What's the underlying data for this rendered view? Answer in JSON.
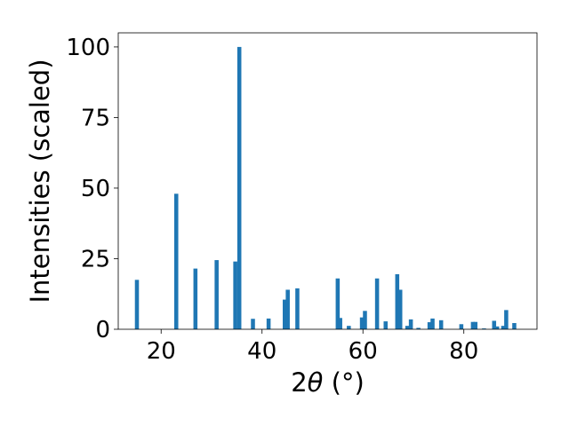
{
  "chart_data": {
    "type": "bar",
    "xlabel": "2θ (°)",
    "xlabel_parts": {
      "prefix": "2",
      "symbol": "θ",
      "suffix": " (°)"
    },
    "ylabel": "Intensities (scaled)",
    "xlim": [
      11.5,
      94.5
    ],
    "ylim": [
      0,
      105
    ],
    "x_ticks": [
      20,
      40,
      60,
      80
    ],
    "y_ticks": [
      0,
      25,
      50,
      75,
      100
    ],
    "color": "#1f77b4",
    "bar_width": 0.8,
    "points": [
      {
        "x": 15.2,
        "y": 17.5
      },
      {
        "x": 23.0,
        "y": 48.0
      },
      {
        "x": 26.8,
        "y": 21.5
      },
      {
        "x": 31.0,
        "y": 24.5
      },
      {
        "x": 34.7,
        "y": 24.0
      },
      {
        "x": 35.5,
        "y": 100.0
      },
      {
        "x": 38.2,
        "y": 3.7
      },
      {
        "x": 41.3,
        "y": 3.8
      },
      {
        "x": 44.5,
        "y": 10.5
      },
      {
        "x": 45.1,
        "y": 14.0
      },
      {
        "x": 47.0,
        "y": 14.5
      },
      {
        "x": 55.0,
        "y": 18.0
      },
      {
        "x": 55.5,
        "y": 4.0
      },
      {
        "x": 57.2,
        "y": 1.2
      },
      {
        "x": 59.8,
        "y": 4.2
      },
      {
        "x": 60.4,
        "y": 6.5
      },
      {
        "x": 62.8,
        "y": 18.0
      },
      {
        "x": 64.5,
        "y": 2.8
      },
      {
        "x": 66.8,
        "y": 19.5
      },
      {
        "x": 67.4,
        "y": 14.0
      },
      {
        "x": 68.8,
        "y": 1.2
      },
      {
        "x": 69.5,
        "y": 3.5
      },
      {
        "x": 71.0,
        "y": 0.5
      },
      {
        "x": 73.2,
        "y": 2.5
      },
      {
        "x": 73.8,
        "y": 3.8
      },
      {
        "x": 75.5,
        "y": 3.2
      },
      {
        "x": 79.5,
        "y": 1.8
      },
      {
        "x": 81.8,
        "y": 2.6
      },
      {
        "x": 82.3,
        "y": 2.6
      },
      {
        "x": 84.0,
        "y": 0.3
      },
      {
        "x": 86.0,
        "y": 3.0
      },
      {
        "x": 86.6,
        "y": 1.0
      },
      {
        "x": 87.8,
        "y": 1.2
      },
      {
        "x": 88.4,
        "y": 6.8
      },
      {
        "x": 90.0,
        "y": 2.2
      }
    ]
  }
}
